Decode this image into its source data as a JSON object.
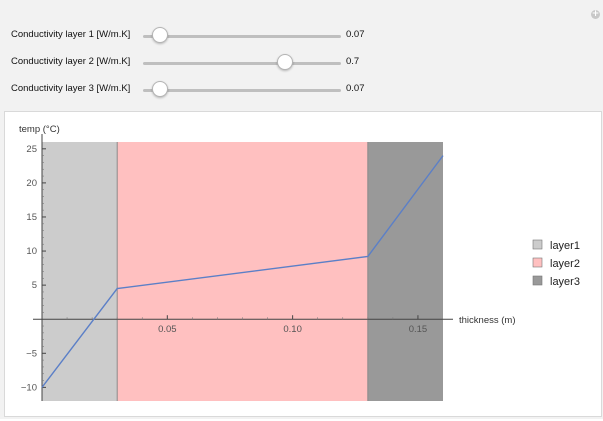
{
  "controls": [
    {
      "label": "Conductivity layer 1 [W/m.K]",
      "value": "0.07",
      "level": 0.07
    },
    {
      "label": "Conductivity layer 2 [W/m.K]",
      "value": "0.7",
      "level": 0.7
    },
    {
      "label": "Conductivity layer 3 [W/m.K]",
      "value": "0.07",
      "level": 0.07
    }
  ],
  "slider_range": [
    0,
    1
  ],
  "chart_data": {
    "type": "line",
    "ylabel": "temp (°C)",
    "xlabel": "thickness (m)",
    "xlim": [
      0,
      0.16
    ],
    "ylim": [
      -12,
      26
    ],
    "xticks": [
      0.05,
      0.1,
      0.15
    ],
    "xtick_labels": [
      "0.05",
      "0.10",
      "0.15"
    ],
    "yticks": [
      -10,
      -5,
      5,
      10,
      15,
      20,
      25
    ],
    "ytick_labels": [
      "−10",
      "−5",
      "5",
      "10",
      "15",
      "20",
      "25"
    ],
    "layers": [
      {
        "name": "layer1",
        "x0": 0,
        "x1": 0.03,
        "color": "#cccccc"
      },
      {
        "name": "layer2",
        "x0": 0.03,
        "x1": 0.13,
        "color": "#ffc0c0"
      },
      {
        "name": "layer3",
        "x0": 0.13,
        "x1": 0.16,
        "color": "#999999"
      }
    ],
    "series": [
      {
        "x": [
          0,
          0.03,
          0.13,
          0.16
        ],
        "y": [
          -10,
          4.5,
          9.2,
          24
        ]
      }
    ],
    "line_color": "#5b7fc7",
    "legend_position": "right"
  }
}
